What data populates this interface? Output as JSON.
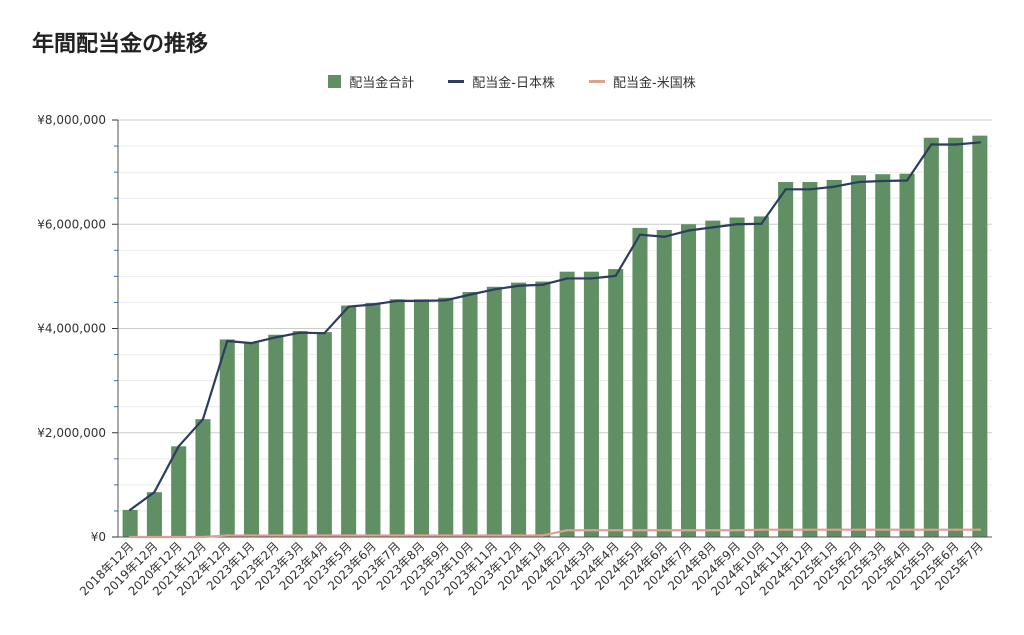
{
  "chart_data": {
    "type": "bar",
    "title": "年間配当金の推移",
    "xlabel": "",
    "ylabel": "",
    "ylim": [
      0,
      8000000
    ],
    "yticks": [
      "¥0",
      "¥2,000,000",
      "¥4,000,000",
      "¥6,000,000",
      "¥8,000,000"
    ],
    "ytick_values": [
      0,
      2000000,
      4000000,
      6000000,
      8000000
    ],
    "legend_position": "top-center",
    "categories": [
      "2018年12月",
      "2019年12月",
      "2020年12月",
      "2021年12月",
      "2022年12月",
      "2023年1月",
      "2023年2月",
      "2023年3月",
      "2023年4月",
      "2023年5月",
      "2023年6月",
      "2023年7月",
      "2023年8月",
      "2023年9月",
      "2023年10月",
      "2023年11月",
      "2023年12月",
      "2024年1月",
      "2024年2月",
      "2024年3月",
      "2024年4月",
      "2024年5月",
      "2024年6月",
      "2024年7月",
      "2024年8月",
      "2024年9月",
      "2024年10月",
      "2024年11月",
      "2024年12月",
      "2025年1月",
      "2025年2月",
      "2025年3月",
      "2025年4月",
      "2025年5月",
      "2025年6月",
      "2025年7月"
    ],
    "series": [
      {
        "name": "配当金合計",
        "kind": "bar",
        "color": "#5f8f62",
        "values": [
          520000,
          860000,
          1740000,
          2260000,
          3790000,
          3730000,
          3880000,
          3950000,
          3930000,
          4440000,
          4490000,
          4560000,
          4560000,
          4590000,
          4700000,
          4800000,
          4880000,
          4900000,
          5090000,
          5090000,
          5140000,
          5930000,
          5890000,
          6000000,
          6070000,
          6130000,
          6150000,
          6810000,
          6810000,
          6850000,
          6940000,
          6960000,
          6970000,
          7660000,
          7660000,
          7700000
        ]
      },
      {
        "name": "配当金-日本株",
        "kind": "line",
        "color": "#2c3e5c",
        "values": [
          520000,
          860000,
          1740000,
          2260000,
          3760000,
          3720000,
          3830000,
          3920000,
          3910000,
          4420000,
          4460000,
          4530000,
          4530000,
          4540000,
          4650000,
          4750000,
          4820000,
          4840000,
          4960000,
          4960000,
          5010000,
          5800000,
          5760000,
          5880000,
          5940000,
          6000000,
          6010000,
          6670000,
          6670000,
          6720000,
          6810000,
          6830000,
          6840000,
          7530000,
          7530000,
          7570000
        ]
      },
      {
        "name": "配当金-米国株",
        "kind": "line",
        "color": "#e0a090",
        "values": [
          0,
          0,
          0,
          0,
          30000,
          30000,
          30000,
          30000,
          30000,
          30000,
          30000,
          30000,
          30000,
          30000,
          30000,
          30000,
          30000,
          30000,
          130000,
          130000,
          130000,
          130000,
          130000,
          130000,
          130000,
          130000,
          140000,
          140000,
          140000,
          140000,
          140000,
          140000,
          140000,
          140000,
          140000,
          140000
        ]
      }
    ]
  }
}
